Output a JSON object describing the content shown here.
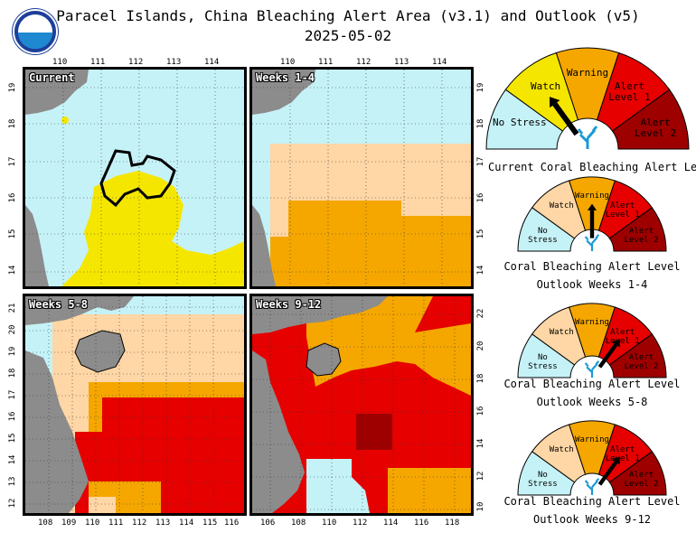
{
  "header": {
    "title": "Paracel Islands, China Bleaching Alert Area (v3.1) and Outlook (v5)",
    "date": "2025-05-02",
    "logo_text": "NOAA"
  },
  "colors": {
    "ocean": "#c5f2f7",
    "land": "#8c8c8c",
    "no_stress": "#c5f2f7",
    "watch": "#ffd6a5",
    "watch_yellow": "#f5e600",
    "warning": "#f5a700",
    "alert1": "#e60000",
    "alert2": "#9e0000"
  },
  "panels": {
    "current": {
      "label": "Current",
      "xticks": [
        "110",
        "111",
        "112",
        "113",
        "114"
      ],
      "yticks": [
        "19",
        "18",
        "17",
        "16",
        "15",
        "14"
      ]
    },
    "weeks_1_4": {
      "label": "Weeks 1-4",
      "xticks": [
        "110",
        "111",
        "112",
        "113",
        "114"
      ],
      "yticks": [
        "19",
        "18",
        "17",
        "16",
        "15",
        "14"
      ]
    },
    "weeks_5_8": {
      "label": "Weeks 5-8",
      "xticks": [
        "108",
        "109",
        "110",
        "111",
        "112",
        "113",
        "114",
        "115",
        "116"
      ],
      "yticks": [
        "21",
        "20",
        "19",
        "18",
        "17",
        "16",
        "15",
        "14",
        "13",
        "12"
      ]
    },
    "weeks_9_12": {
      "label": "Weeks 9-12",
      "xticks": [
        "106",
        "108",
        "110",
        "112",
        "114",
        "116",
        "118"
      ],
      "yticks": [
        "22",
        "20",
        "18",
        "16",
        "14",
        "12",
        "10"
      ]
    }
  },
  "gauges": [
    {
      "caption": "Current Coral Bleaching Alert Level",
      "caption2": "",
      "level": "Watch",
      "labels": {
        "no_stress": "No Stress",
        "watch": "Watch",
        "warning": "Warning",
        "alert1": "Alert Level 1",
        "alert2": "Alert Level 2"
      }
    },
    {
      "caption": "Coral Bleaching Alert Level",
      "caption2": "Outlook Weeks 1-4",
      "level": "Warning",
      "labels": {
        "no_stress": "No Stress",
        "watch": "Watch",
        "warning": "Warning",
        "alert1": "Alert Level 1",
        "alert2": "Alert Level 2"
      }
    },
    {
      "caption": "Coral Bleaching Alert Level",
      "caption2": "Outlook Weeks 5-8",
      "level": "Alert Level 1",
      "labels": {
        "no_stress": "No Stress",
        "watch": "Watch",
        "warning": "Warning",
        "alert1": "Alert Level 1",
        "alert2": "Alert Level 2"
      }
    },
    {
      "caption": "Coral Bleaching Alert Level",
      "caption2": "Outlook Weeks 9-12",
      "level": "Alert Level 1",
      "labels": {
        "no_stress": "No Stress",
        "watch": "Watch",
        "warning": "Warning",
        "alert1": "Alert Level 1",
        "alert2": "Alert Level 2"
      }
    }
  ]
}
